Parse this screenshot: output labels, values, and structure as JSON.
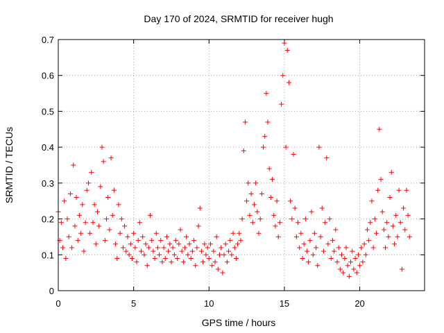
{
  "chart_data": {
    "type": "scatter",
    "title": "Day 170 of 2024, SRMTID for receiver hugh",
    "xlabel": "GPS time / hours",
    "ylabel": "SRMTID / TECUs",
    "xlim": [
      0,
      24.3
    ],
    "ylim": [
      0,
      0.7
    ],
    "x_ticks": [
      0,
      5,
      10,
      15,
      20
    ],
    "x_tick_labels": [
      "0",
      "5",
      "10",
      "15",
      "20"
    ],
    "y_ticks": [
      0,
      0.1,
      0.2,
      0.3,
      0.4,
      0.5,
      0.6,
      0.7
    ],
    "y_tick_labels": [
      "0",
      "0.1",
      "0.2",
      "0.3",
      "0.4",
      "0.5",
      "0.6",
      "0.7"
    ],
    "grid": true,
    "marker": "plus",
    "color": "#ff0000",
    "series": [
      {
        "name": "SRMTID",
        "points": [
          [
            0.0,
            0.22
          ],
          [
            0.1,
            0.14
          ],
          [
            0.2,
            0.19
          ],
          [
            0.3,
            0.12
          ],
          [
            0.4,
            0.25
          ],
          [
            0.5,
            0.09
          ],
          [
            0.6,
            0.2
          ],
          [
            0.7,
            0.15
          ],
          [
            0.8,
            0.27
          ],
          [
            0.9,
            0.12
          ],
          [
            1.0,
            0.35
          ],
          [
            1.1,
            0.18
          ],
          [
            1.2,
            0.26
          ],
          [
            1.3,
            0.14
          ],
          [
            1.4,
            0.21
          ],
          [
            1.5,
            0.16
          ],
          [
            1.6,
            0.24
          ],
          [
            1.7,
            0.11
          ],
          [
            1.8,
            0.19
          ],
          [
            1.9,
            0.28
          ],
          [
            2.0,
            0.3
          ],
          [
            2.1,
            0.16
          ],
          [
            2.2,
            0.33
          ],
          [
            2.3,
            0.19
          ],
          [
            2.4,
            0.24
          ],
          [
            2.5,
            0.13
          ],
          [
            2.6,
            0.22
          ],
          [
            2.7,
            0.18
          ],
          [
            2.8,
            0.29
          ],
          [
            2.9,
            0.4
          ],
          [
            3.0,
            0.36
          ],
          [
            3.1,
            0.14
          ],
          [
            3.2,
            0.2
          ],
          [
            3.3,
            0.26
          ],
          [
            3.4,
            0.17
          ],
          [
            3.5,
            0.37
          ],
          [
            3.6,
            0.21
          ],
          [
            3.7,
            0.28
          ],
          [
            3.8,
            0.13
          ],
          [
            3.9,
            0.09
          ],
          [
            4.0,
            0.24
          ],
          [
            4.1,
            0.16
          ],
          [
            4.2,
            0.2
          ],
          [
            4.3,
            0.12
          ],
          [
            4.4,
            0.18
          ],
          [
            4.5,
            0.11
          ],
          [
            4.6,
            0.15
          ],
          [
            4.7,
            0.1
          ],
          [
            4.8,
            0.13
          ],
          [
            4.9,
            0.09
          ],
          [
            5.0,
            0.16
          ],
          [
            5.1,
            0.12
          ],
          [
            5.2,
            0.08
          ],
          [
            5.3,
            0.14
          ],
          [
            5.4,
            0.19
          ],
          [
            5.5,
            0.11
          ],
          [
            5.6,
            0.15
          ],
          [
            5.7,
            0.1
          ],
          [
            5.8,
            0.13
          ],
          [
            5.9,
            0.07
          ],
          [
            6.0,
            0.12
          ],
          [
            6.1,
            0.21
          ],
          [
            6.2,
            0.14
          ],
          [
            6.3,
            0.11
          ],
          [
            6.4,
            0.09
          ],
          [
            6.5,
            0.16
          ],
          [
            6.6,
            0.12
          ],
          [
            6.7,
            0.1
          ],
          [
            6.8,
            0.14
          ],
          [
            6.9,
            0.08
          ],
          [
            7.0,
            0.12
          ],
          [
            7.1,
            0.09
          ],
          [
            7.2,
            0.15
          ],
          [
            7.3,
            0.11
          ],
          [
            7.4,
            0.13
          ],
          [
            7.5,
            0.08
          ],
          [
            7.6,
            0.12
          ],
          [
            7.7,
            0.1
          ],
          [
            7.8,
            0.14
          ],
          [
            7.9,
            0.09
          ],
          [
            8.0,
            0.13
          ],
          [
            8.1,
            0.17
          ],
          [
            8.2,
            0.11
          ],
          [
            8.3,
            0.08
          ],
          [
            8.4,
            0.12
          ],
          [
            8.5,
            0.15
          ],
          [
            8.6,
            0.1
          ],
          [
            8.7,
            0.13
          ],
          [
            8.8,
            0.09
          ],
          [
            8.9,
            0.11
          ],
          [
            9.0,
            0.14
          ],
          [
            9.1,
            0.07
          ],
          [
            9.2,
            0.12
          ],
          [
            9.3,
            0.18
          ],
          [
            9.4,
            0.23
          ],
          [
            9.5,
            0.11
          ],
          [
            9.6,
            0.08
          ],
          [
            9.7,
            0.13
          ],
          [
            9.8,
            0.1
          ],
          [
            9.9,
            0.12
          ],
          [
            10.0,
            0.09
          ],
          [
            10.1,
            0.13
          ],
          [
            10.2,
            0.07
          ],
          [
            10.3,
            0.11
          ],
          [
            10.4,
            0.08
          ],
          [
            10.5,
            0.15
          ],
          [
            10.6,
            0.06
          ],
          [
            10.7,
            0.1
          ],
          [
            10.8,
            0.12
          ],
          [
            10.9,
            0.05
          ],
          [
            11.0,
            0.1
          ],
          [
            11.1,
            0.13
          ],
          [
            11.2,
            0.08
          ],
          [
            11.3,
            0.11
          ],
          [
            11.4,
            0.14
          ],
          [
            11.5,
            0.1
          ],
          [
            11.6,
            0.16
          ],
          [
            11.7,
            0.12
          ],
          [
            11.8,
            0.09
          ],
          [
            11.9,
            0.13
          ],
          [
            12.0,
            0.16
          ],
          [
            12.1,
            0.14
          ],
          [
            12.2,
            0.2
          ],
          [
            12.3,
            0.39
          ],
          [
            12.4,
            0.47
          ],
          [
            12.5,
            0.25
          ],
          [
            12.6,
            0.3
          ],
          [
            12.7,
            0.21
          ],
          [
            12.8,
            0.27
          ],
          [
            12.9,
            0.19
          ],
          [
            13.0,
            0.24
          ],
          [
            13.1,
            0.3
          ],
          [
            13.2,
            0.22
          ],
          [
            13.3,
            0.16
          ],
          [
            13.4,
            0.2
          ],
          [
            13.5,
            0.27
          ],
          [
            13.6,
            0.4
          ],
          [
            13.7,
            0.43
          ],
          [
            13.8,
            0.55
          ],
          [
            13.9,
            0.47
          ],
          [
            14.0,
            0.34
          ],
          [
            14.1,
            0.26
          ],
          [
            14.2,
            0.31
          ],
          [
            14.3,
            0.21
          ],
          [
            14.4,
            0.18
          ],
          [
            14.5,
            0.25
          ],
          [
            14.6,
            0.15
          ],
          [
            14.7,
            0.19
          ],
          [
            14.8,
            0.52
          ],
          [
            14.9,
            0.6
          ],
          [
            15.0,
            0.69
          ],
          [
            15.1,
            0.4
          ],
          [
            15.2,
            0.67
          ],
          [
            15.3,
            0.58
          ],
          [
            15.4,
            0.25
          ],
          [
            15.5,
            0.2
          ],
          [
            15.6,
            0.38
          ],
          [
            15.7,
            0.23
          ],
          [
            15.8,
            0.15
          ],
          [
            15.9,
            0.19
          ],
          [
            16.0,
            0.12
          ],
          [
            16.1,
            0.16
          ],
          [
            16.2,
            0.09
          ],
          [
            16.3,
            0.13
          ],
          [
            16.4,
            0.2
          ],
          [
            16.5,
            0.11
          ],
          [
            16.6,
            0.08
          ],
          [
            16.7,
            0.14
          ],
          [
            16.8,
            0.22
          ],
          [
            16.9,
            0.1
          ],
          [
            17.0,
            0.16
          ],
          [
            17.1,
            0.12
          ],
          [
            17.2,
            0.07
          ],
          [
            17.3,
            0.4
          ],
          [
            17.4,
            0.15
          ],
          [
            17.5,
            0.23
          ],
          [
            17.6,
            0.11
          ],
          [
            17.7,
            0.19
          ],
          [
            17.8,
            0.37
          ],
          [
            17.9,
            0.13
          ],
          [
            18.0,
            0.2
          ],
          [
            18.1,
            0.09
          ],
          [
            18.2,
            0.14
          ],
          [
            18.3,
            0.11
          ],
          [
            18.4,
            0.17
          ],
          [
            18.5,
            0.08
          ],
          [
            18.6,
            0.12
          ],
          [
            18.7,
            0.06
          ],
          [
            18.8,
            0.1
          ],
          [
            18.9,
            0.05
          ],
          [
            19.0,
            0.09
          ],
          [
            19.1,
            0.12
          ],
          [
            19.2,
            0.07
          ],
          [
            19.3,
            0.04
          ],
          [
            19.4,
            0.08
          ],
          [
            19.5,
            0.11
          ],
          [
            19.6,
            0.06
          ],
          [
            19.7,
            0.09
          ],
          [
            19.8,
            0.05
          ],
          [
            19.9,
            0.1
          ],
          [
            20.0,
            0.07
          ],
          [
            20.1,
            0.12
          ],
          [
            20.2,
            0.08
          ],
          [
            20.3,
            0.13
          ],
          [
            20.4,
            0.1
          ],
          [
            20.5,
            0.17
          ],
          [
            20.6,
            0.14
          ],
          [
            20.7,
            0.19
          ],
          [
            20.8,
            0.25
          ],
          [
            20.9,
            0.12
          ],
          [
            21.0,
            0.2
          ],
          [
            21.1,
            0.16
          ],
          [
            21.2,
            0.28
          ],
          [
            21.3,
            0.45
          ],
          [
            21.4,
            0.31
          ],
          [
            21.5,
            0.22
          ],
          [
            21.6,
            0.17
          ],
          [
            21.7,
            0.12
          ],
          [
            21.8,
            0.19
          ],
          [
            21.9,
            0.15
          ],
          [
            22.0,
            0.26
          ],
          [
            22.1,
            0.33
          ],
          [
            22.2,
            0.18
          ],
          [
            22.3,
            0.13
          ],
          [
            22.4,
            0.21
          ],
          [
            22.5,
            0.15
          ],
          [
            22.6,
            0.28
          ],
          [
            22.7,
            0.19
          ],
          [
            22.8,
            0.06
          ],
          [
            22.9,
            0.23
          ],
          [
            23.0,
            0.17
          ],
          [
            23.1,
            0.28
          ],
          [
            23.2,
            0.21
          ],
          [
            23.3,
            0.15
          ]
        ]
      }
    ]
  }
}
